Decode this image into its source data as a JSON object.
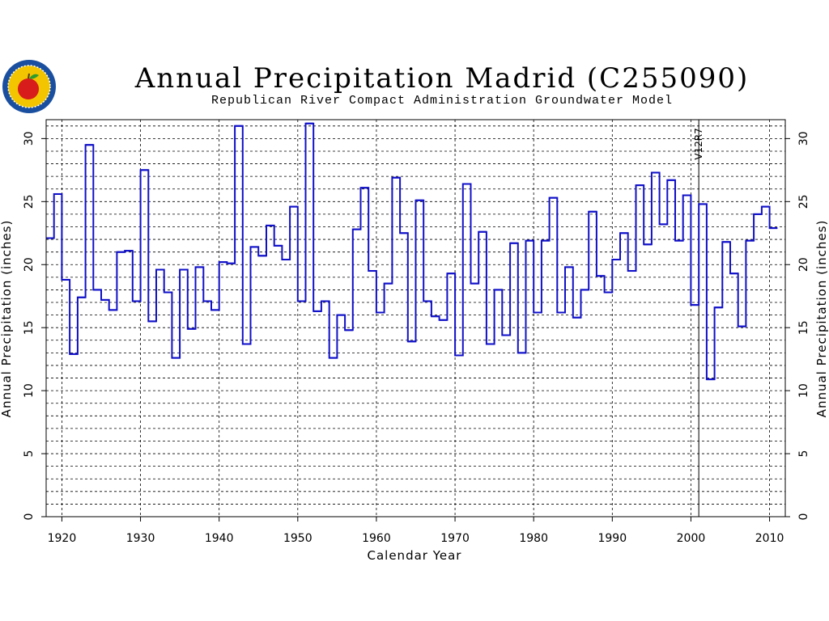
{
  "header": {
    "title": "Annual Precipitation Madrid (C255090)",
    "subtitle": "Republican River Compact Administration Groundwater Model"
  },
  "logo": {
    "name": "seal-logo",
    "colors": {
      "ring": "#1a4fa0",
      "fill": "#f2c500",
      "apple": "#d81b1b",
      "leaf": "#2e9b2e"
    }
  },
  "colors": {
    "series": "#1010c8",
    "frame": "#000000"
  },
  "chart_data": {
    "type": "line",
    "step": true,
    "title": "Annual Precipitation Madrid (C255090)",
    "subtitle": "Republican River Compact Administration Groundwater Model",
    "xlabel": "Calendar Year",
    "ylabel": "Annual Precipitation (inches)",
    "ylabel_right": "Annual Precipitation (inches)",
    "xlim": [
      1918,
      2012
    ],
    "ylim": [
      0,
      31.5
    ],
    "xticks": [
      "1920",
      "1930",
      "1940",
      "1950",
      "1960",
      "1970",
      "1980",
      "1990",
      "2000",
      "2010"
    ],
    "yticks": [
      "0",
      "5",
      "10",
      "15",
      "20",
      "25",
      "30"
    ],
    "grid": true,
    "annotation": {
      "text": "V12R7",
      "x": 2001
    },
    "series": [
      {
        "x": [
          1918,
          1919,
          1920,
          1921,
          1922,
          1923,
          1924,
          1925,
          1926,
          1927,
          1928,
          1929,
          1930,
          1931,
          1932,
          1933,
          1934,
          1935,
          1936,
          1937,
          1938,
          1939,
          1940,
          1941,
          1942,
          1943,
          1944,
          1945,
          1946,
          1947,
          1948,
          1949,
          1950,
          1951,
          1952,
          1953,
          1954,
          1955,
          1956,
          1957,
          1958,
          1959,
          1960,
          1961,
          1962,
          1963,
          1964,
          1965,
          1966,
          1967,
          1968,
          1969,
          1970,
          1971,
          1972,
          1973,
          1974,
          1975,
          1976,
          1977,
          1978,
          1979,
          1980,
          1981,
          1982,
          1983,
          1984,
          1985,
          1986,
          1987,
          1988,
          1989,
          1990,
          1991,
          1992,
          1993,
          1994,
          1995,
          1996,
          1997,
          1998,
          1999,
          2000,
          2001,
          2002,
          2003,
          2004,
          2005,
          2006,
          2007,
          2008,
          2009,
          2010
        ],
        "values": [
          22.1,
          25.6,
          18.8,
          12.9,
          17.4,
          29.5,
          18.0,
          17.2,
          16.4,
          21.0,
          21.1,
          17.1,
          27.5,
          15.5,
          19.6,
          17.8,
          12.6,
          19.6,
          14.9,
          19.8,
          17.1,
          16.4,
          20.2,
          20.1,
          31.0,
          13.7,
          21.4,
          20.7,
          23.1,
          21.5,
          20.4,
          24.6,
          17.1,
          31.2,
          16.3,
          17.1,
          12.6,
          16.0,
          14.8,
          22.8,
          26.1,
          19.5,
          16.2,
          18.5,
          26.9,
          22.5,
          13.9,
          25.1,
          17.1,
          15.9,
          15.6,
          19.3,
          12.8,
          26.4,
          18.5,
          22.6,
          13.7,
          18.0,
          14.4,
          21.7,
          13.0,
          21.9,
          16.2,
          21.9,
          25.3,
          16.2,
          19.8,
          15.8,
          18.0,
          24.2,
          19.1,
          17.8,
          20.4,
          22.5,
          19.5,
          26.3,
          21.6,
          27.3,
          23.2,
          26.7,
          21.9,
          25.5,
          16.8,
          24.8,
          10.9,
          16.6,
          21.8,
          19.3,
          15.1,
          21.9,
          24.0,
          24.6,
          22.9
        ]
      }
    ]
  }
}
